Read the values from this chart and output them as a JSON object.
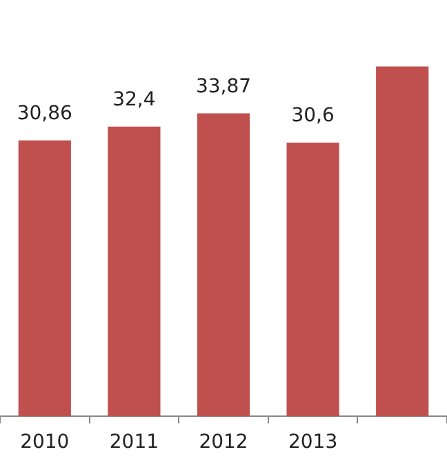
{
  "chart_data": {
    "type": "bar",
    "categories": [
      "2010",
      "2011",
      "2012",
      "2013",
      null
    ],
    "values": [
      30.86,
      32.4,
      33.87,
      30.6,
      39.1
    ],
    "value_labels": [
      "30,86",
      "32,4",
      "33,87",
      "30,6",
      null
    ],
    "color": "#c0504d",
    "tick_labels": "x",
    "grid": false,
    "legend": false
  }
}
